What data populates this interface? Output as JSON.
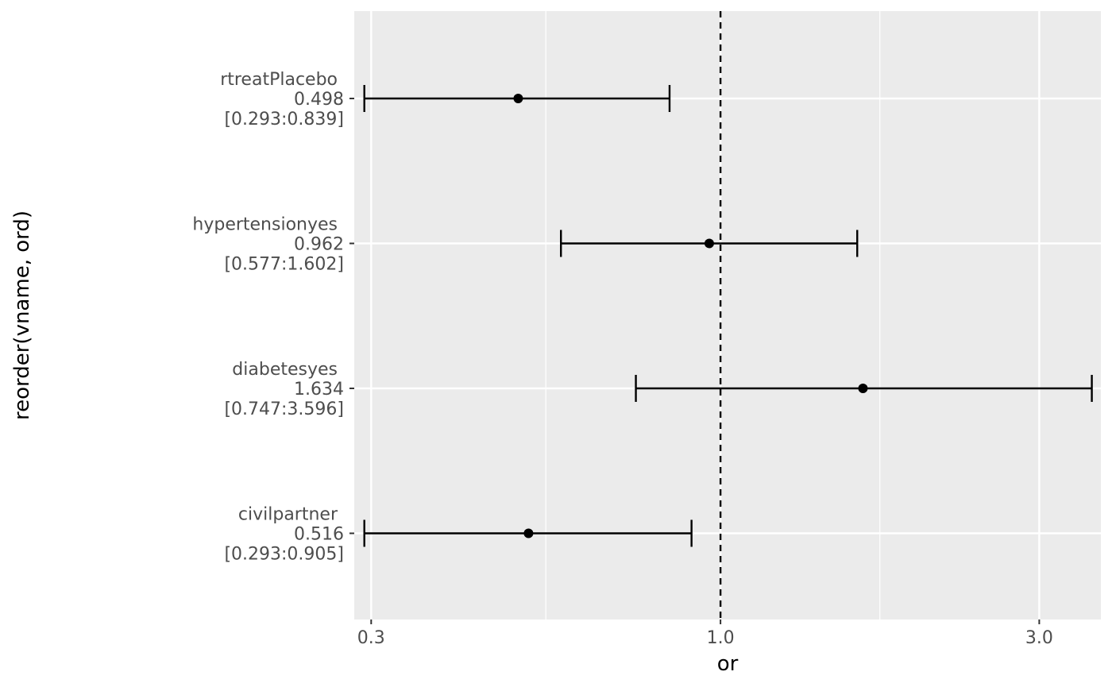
{
  "chart_data": {
    "type": "forest",
    "xlabel": "or",
    "ylabel": "reorder(vname, ord)",
    "x_scale": "log10",
    "xlim": [
      0.283,
      3.71
    ],
    "x_ticks": [
      0.3,
      1.0,
      3.0
    ],
    "x_tick_labels": [
      "0.3",
      "1.0",
      "3.0"
    ],
    "reference_line": 1.0,
    "rows": [
      {
        "label": "rtreatPlacebo",
        "value_label": "0.498",
        "ci_label": "[0.293:0.839]",
        "or": 0.498,
        "lo": 0.293,
        "hi": 0.839
      },
      {
        "label": "hypertensionyes",
        "value_label": "0.962",
        "ci_label": "[0.577:1.602]",
        "or": 0.962,
        "lo": 0.577,
        "hi": 1.602
      },
      {
        "label": "diabetesyes",
        "value_label": "1.634",
        "ci_label": "[0.747:3.596]",
        "or": 1.634,
        "lo": 0.747,
        "hi": 3.596
      },
      {
        "label": "civilpartner",
        "value_label": "0.516",
        "ci_label": "[0.293:0.905]",
        "or": 0.516,
        "lo": 0.293,
        "hi": 0.905
      }
    ],
    "colors": {
      "panel": "#ebebeb",
      "grid": "#ffffff",
      "mark": "#000000",
      "tick_text": "#4d4d4d"
    },
    "grid": true,
    "legend": "none"
  }
}
